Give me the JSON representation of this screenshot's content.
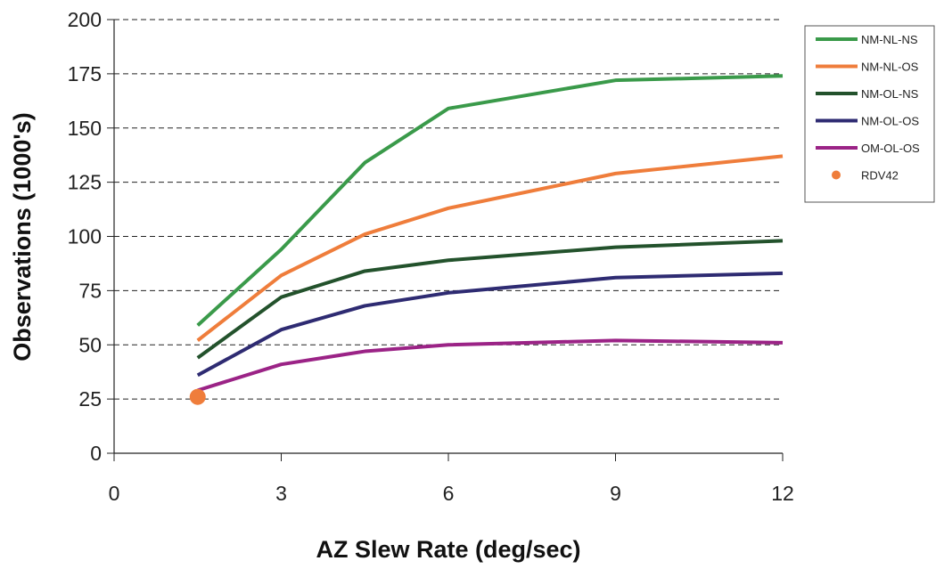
{
  "chart_data": {
    "type": "line",
    "title": "",
    "xlabel": "AZ Slew Rate (deg/sec)",
    "ylabel": "Observations (1000's)",
    "xlim": [
      0,
      12
    ],
    "ylim": [
      0,
      200
    ],
    "xticks": [
      "0",
      "3",
      "6",
      "9",
      "12"
    ],
    "yticks": [
      "0",
      "25",
      "50",
      "75",
      "100",
      "125",
      "150",
      "175",
      "200"
    ],
    "grid": "horizontal dashed",
    "legend_position": "top-right",
    "x": [
      1.5,
      3,
      4.5,
      6,
      9,
      12
    ],
    "series": [
      {
        "name": "NM-NL-NS",
        "color": "#3a9a4a",
        "values": [
          59,
          94,
          134,
          159,
          172,
          174
        ]
      },
      {
        "name": "NM-NL-OS",
        "color": "#ef7d3b",
        "values": [
          52,
          82,
          101,
          113,
          129,
          137
        ]
      },
      {
        "name": "NM-OL-NS",
        "color": "#23522c",
        "values": [
          44,
          72,
          84,
          89,
          95,
          98
        ]
      },
      {
        "name": "NM-OL-OS",
        "color": "#2e2b72",
        "values": [
          36,
          57,
          68,
          74,
          81,
          83
        ]
      },
      {
        "name": "OM-OL-OS",
        "color": "#9b2386",
        "values": [
          29,
          41,
          47,
          50,
          52,
          51
        ]
      }
    ],
    "points": [
      {
        "name": "RDV42",
        "color": "#ef7d3b",
        "x": 1.5,
        "y": 26
      }
    ]
  }
}
